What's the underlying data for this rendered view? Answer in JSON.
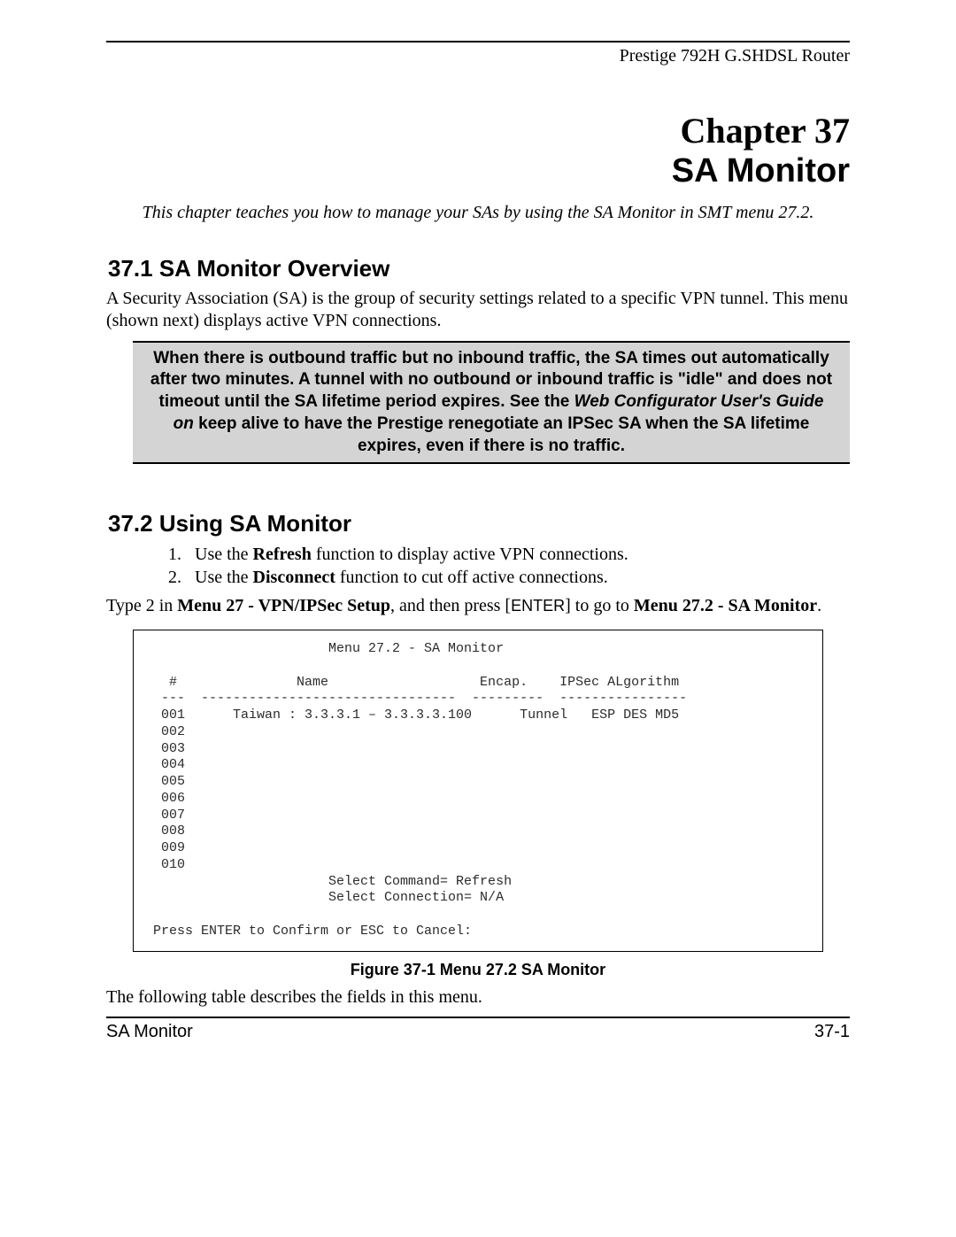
{
  "header": {
    "product": "Prestige 792H G.SHDSL Router"
  },
  "chapter": {
    "label": "Chapter 37",
    "title": "SA Monitor",
    "intro": "This chapter teaches you how to manage your SAs by using the SA Monitor in SMT menu 27.2."
  },
  "section1": {
    "heading": "37.1  SA Monitor Overview",
    "body": "A Security Association (SA) is the group of security settings related to a specific VPN tunnel. This menu (shown next) displays active VPN connections."
  },
  "note": {
    "line1": "When there is outbound traffic but no inbound traffic, the SA times out automatically after two minutes. A tunnel with no outbound or inbound traffic is \"idle\" and does not timeout until the SA lifetime period expires. See the ",
    "ital": "Web Configurator User's Guide on",
    "line2": " keep alive to have the Prestige renegotiate an IPSec SA when the SA lifetime expires, even if there is no traffic."
  },
  "section2": {
    "heading": "37.2  Using SA Monitor",
    "steps": {
      "s1a": "Use the ",
      "s1b": "Refresh",
      "s1c": " function to display active VPN connections.",
      "s2a": "Use the ",
      "s2b": "Disconnect",
      "s2c": " function to cut off active connections."
    },
    "instr": {
      "a": "Type 2 in ",
      "b": "Menu 27 - VPN/IPSec Setup",
      "c": ", and then press [",
      "key": "ENTER",
      "d": "] to go to ",
      "e": "Menu 27.2 - SA Monitor",
      "f": "."
    }
  },
  "terminal": {
    "title": "                      Menu 27.2 - SA Monitor",
    "hdr": "  #               Name                   Encap.    IPSec ALgorithm",
    "sep": " ---  --------------------------------  ---------  ----------------",
    "rows": [
      " 001      Taiwan : 3.3.3.1 – 3.3.3.3.100      Tunnel   ESP DES MD5",
      " 002",
      " 003",
      " 004",
      " 005",
      " 006",
      " 007",
      " 008",
      " 009",
      " 010"
    ],
    "cmd1": "                      Select Command= Refresh",
    "cmd2": "                      Select Connection= N/A",
    "footer": "Press ENTER to Confirm or ESC to Cancel:"
  },
  "figure_caption": "Figure 37-1 Menu 27.2 SA Monitor",
  "closing_para": "The following table describes the fields in this menu.",
  "footer": {
    "left": "SA Monitor",
    "right": "37-1"
  }
}
